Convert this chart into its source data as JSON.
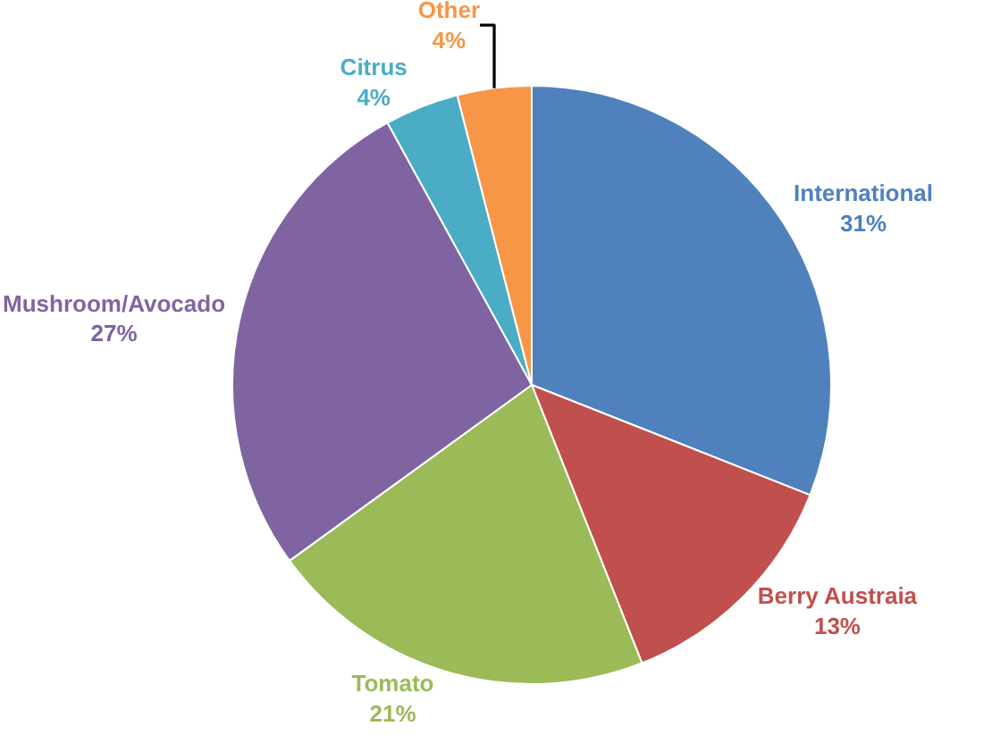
{
  "chart_data": {
    "type": "pie",
    "categories": [
      "International",
      "Berry Austraia",
      "Tomato",
      "Mushroom/Avocado",
      "Citrus",
      "Other"
    ],
    "values": [
      31,
      13,
      21,
      27,
      4,
      4
    ],
    "value_labels": [
      "31%",
      "13%",
      "21%",
      "27%",
      "4%",
      "4%"
    ],
    "colors": [
      "#4f81bd",
      "#c0504d",
      "#9bbb59",
      "#8064a2",
      "#4bacc6",
      "#f79646"
    ],
    "legend": false
  }
}
